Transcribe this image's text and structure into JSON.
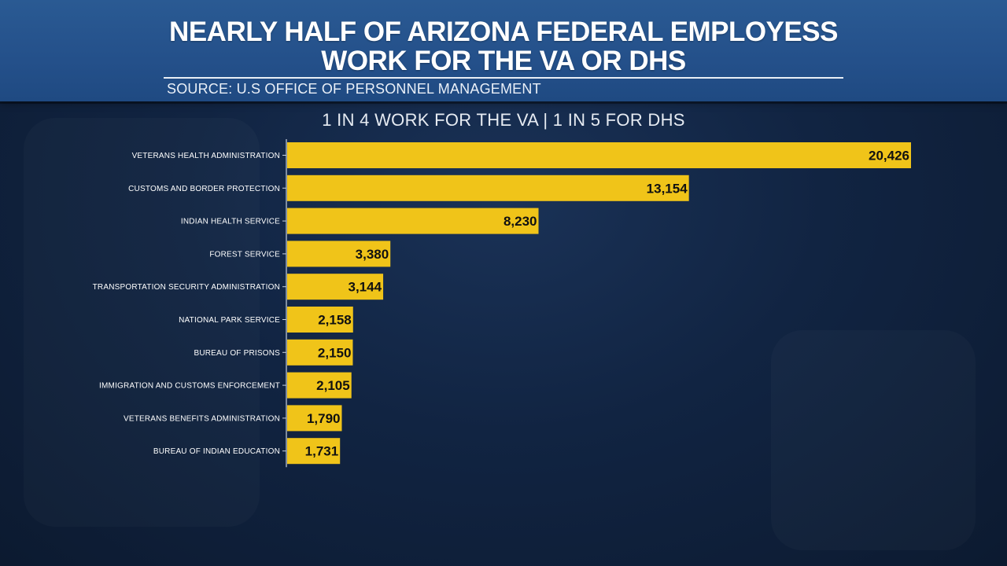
{
  "header": {
    "title": "NEARLY HALF OF ARIZONA FEDERAL EMPLOYESS\nWORK FOR THE VA OR DHS",
    "source": "SOURCE: U.S OFFICE OF PERSONNEL MANAGEMENT"
  },
  "chart_data": {
    "type": "bar",
    "orientation": "horizontal",
    "title": "NEARLY HALF OF ARIZONA FEDERAL EMPLOYESS WORK FOR THE VA OR DHS",
    "subtitle": "1 IN 4 WORK FOR THE VA | 1 IN 5 FOR DHS",
    "categories": [
      "VETERANS HEALTH ADMINISTRATION",
      "CUSTOMS AND BORDER PROTECTION",
      "INDIAN HEALTH SERVICE",
      "FOREST SERVICE",
      "TRANSPORTATION SECURITY ADMINISTRATION",
      "NATIONAL PARK SERVICE",
      "BUREAU OF PRISONS",
      "IMMIGRATION AND CUSTOMS ENFORCEMENT",
      "VETERANS BENEFITS ADMINISTRATION",
      "BUREAU OF INDIAN EDUCATION"
    ],
    "values": [
      20426,
      13154,
      8230,
      3380,
      3144,
      2158,
      2150,
      2105,
      1790,
      1731
    ],
    "value_labels": [
      "20,426",
      "13,154",
      "8,230",
      "3,380",
      "3,144",
      "2,158",
      "2,150",
      "2,105",
      "1,790",
      "1,731"
    ],
    "xlim": [
      0,
      20426
    ],
    "bar_color": "#f0c419",
    "grid": false,
    "legend": "none"
  }
}
